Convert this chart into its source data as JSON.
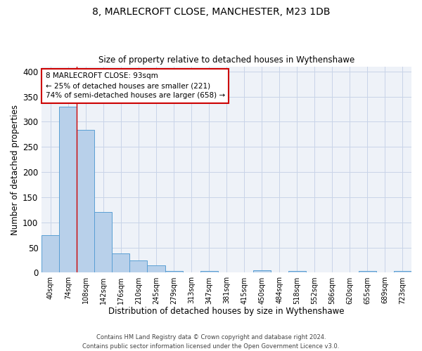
{
  "title_line1": "8, MARLECROFT CLOSE, MANCHESTER, M23 1DB",
  "title_line2": "Size of property relative to detached houses in Wythenshawe",
  "xlabel": "Distribution of detached houses by size in Wythenshawe",
  "ylabel": "Number of detached properties",
  "footer_line1": "Contains HM Land Registry data © Crown copyright and database right 2024.",
  "footer_line2": "Contains public sector information licensed under the Open Government Licence v3.0.",
  "bin_labels": [
    "40sqm",
    "74sqm",
    "108sqm",
    "142sqm",
    "176sqm",
    "210sqm",
    "245sqm",
    "279sqm",
    "313sqm",
    "347sqm",
    "381sqm",
    "415sqm",
    "450sqm",
    "484sqm",
    "518sqm",
    "552sqm",
    "586sqm",
    "620sqm",
    "655sqm",
    "689sqm",
    "723sqm"
  ],
  "bar_values": [
    75,
    330,
    284,
    121,
    39,
    25,
    14,
    4,
    0,
    4,
    0,
    0,
    5,
    0,
    4,
    0,
    0,
    0,
    4,
    0,
    4
  ],
  "bar_color": "#b8d0ea",
  "bar_edge_color": "#5a9fd4",
  "bar_width": 1.0,
  "grid_color": "#c8d4e8",
  "bg_color": "#eef2f8",
  "red_line_x": 1.5,
  "annotation_line1": "8 MARLECROFT CLOSE: 93sqm",
  "annotation_line2": "← 25% of detached houses are smaller (221)",
  "annotation_line3": "74% of semi-detached houses are larger (658) →",
  "annotation_box_color": "white",
  "annotation_box_edge_color": "#cc0000",
  "ylim": [
    0,
    410
  ],
  "yticks": [
    0,
    50,
    100,
    150,
    200,
    250,
    300,
    350,
    400
  ]
}
